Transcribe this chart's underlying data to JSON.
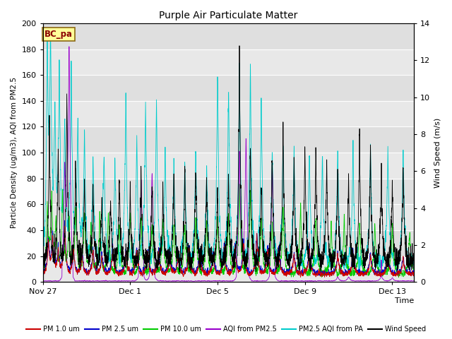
{
  "title": "Purple Air Particulate Matter",
  "xlabel": "Time",
  "ylabel_left": "Particle Density (ug/m3), AQI from PM2.5",
  "ylabel_right": "Wind Speed (m/s)",
  "ylim_left": [
    0,
    200
  ],
  "ylim_right": [
    0,
    14
  ],
  "yticks_left": [
    0,
    20,
    40,
    60,
    80,
    100,
    120,
    140,
    160,
    180,
    200
  ],
  "yticks_right": [
    0,
    2,
    4,
    6,
    8,
    10,
    12,
    14
  ],
  "xtick_positions": [
    0,
    4,
    8,
    12,
    16
  ],
  "xtick_labels": [
    "Nov 27",
    "Dec 1",
    "Dec 5",
    "Dec 9",
    "Dec 13"
  ],
  "xlim": [
    0,
    17
  ],
  "series_colors": {
    "pm1": "#cc0000",
    "pm25": "#0000cc",
    "pm10": "#00cc00",
    "aqi_pm25": "#9900cc",
    "aqi_pa": "#00cccc",
    "wind": "#000000"
  },
  "legend_labels": [
    "PM 1.0 um",
    "PM 2.5 um",
    "PM 10.0 um",
    "AQI from PM2.5",
    "PM2.5 AQI from PA",
    "Wind Speed"
  ],
  "fig_bg_color": "#ffffff",
  "plot_bg_color": "#e8e8e8",
  "band_colors": [
    "#e0e0e0",
    "#d0d0d0"
  ],
  "grid_color": "#ffffff",
  "annotation_text": "BC_pa",
  "annotation_box_facecolor": "#ffff99",
  "annotation_box_edgecolor": "#8b6914",
  "annotation_text_color": "#8b0000",
  "random_seed": 42
}
